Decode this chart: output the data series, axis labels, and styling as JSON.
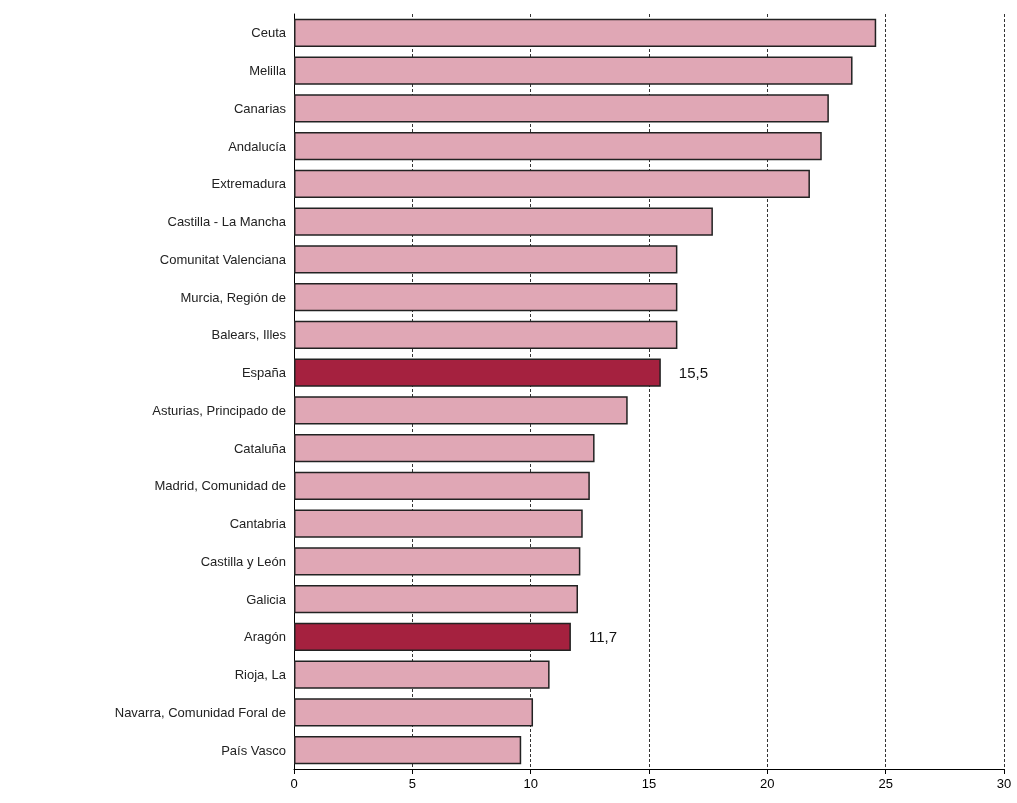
{
  "chart_data": {
    "type": "bar",
    "orientation": "horizontal",
    "categories": [
      "Ceuta",
      "Melilla",
      "Canarias",
      "Andalucía",
      "Extremadura",
      "Castilla - La Mancha",
      "Comunitat Valenciana",
      "Murcia, Región de",
      "Balears, Illes",
      "España",
      "Asturias, Principado de",
      "Cataluña",
      "Madrid, Comunidad de",
      "Cantabria",
      "Castilla y León",
      "Galicia",
      "Aragón",
      "Rioja, La",
      "Navarra, Comunidad Foral de",
      "País Vasco"
    ],
    "values": [
      24.6,
      23.6,
      22.6,
      22.3,
      21.8,
      17.7,
      16.2,
      16.2,
      16.2,
      15.5,
      14.1,
      12.7,
      12.5,
      12.2,
      12.1,
      12.0,
      11.7,
      10.8,
      10.1,
      9.6
    ],
    "colors": [
      "#e0a7b5",
      "#e0a7b5",
      "#e0a7b5",
      "#e0a7b5",
      "#e0a7b5",
      "#e0a7b5",
      "#e0a7b5",
      "#e0a7b5",
      "#e0a7b5",
      "#a5213f",
      "#e0a7b5",
      "#e0a7b5",
      "#e0a7b5",
      "#e0a7b5",
      "#e0a7b5",
      "#e0a7b5",
      "#a5213f",
      "#e0a7b5",
      "#e0a7b5",
      "#e0a7b5"
    ],
    "value_labels": [
      null,
      null,
      null,
      null,
      null,
      null,
      null,
      null,
      null,
      "15,5",
      null,
      null,
      null,
      null,
      null,
      null,
      "11,7",
      null,
      null,
      null
    ],
    "xlim": [
      0,
      30
    ],
    "xticks": [
      0,
      5,
      10,
      15,
      20,
      25,
      30
    ],
    "grid": "x"
  }
}
